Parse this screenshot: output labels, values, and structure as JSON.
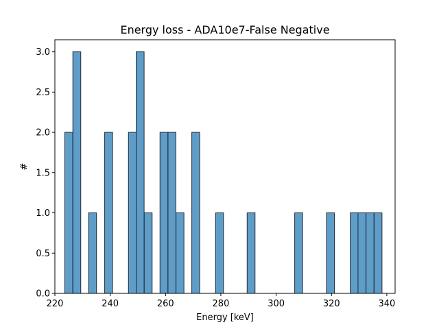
{
  "chart_data": {
    "type": "bar",
    "title": "Energy loss - ADA10e7-False Negative",
    "xlabel": "Energy [keV]",
    "ylabel": "#",
    "xlim": [
      220,
      343
    ],
    "ylim": [
      0,
      3.15
    ],
    "x_ticks": [
      "220",
      "240",
      "260",
      "280",
      "300",
      "320",
      "340"
    ],
    "x_tick_values": [
      220,
      240,
      260,
      280,
      300,
      320,
      340
    ],
    "y_ticks": [
      "0.0",
      "0.5",
      "1.0",
      "1.5",
      "2.0",
      "2.5",
      "3.0"
    ],
    "y_tick_values": [
      0,
      0.5,
      1,
      1.5,
      2,
      2.5,
      3
    ],
    "bin_width": 2.86,
    "bins": [
      {
        "x0": 223.6,
        "count": 2
      },
      {
        "x0": 226.5,
        "count": 3
      },
      {
        "x0": 232.2,
        "count": 1
      },
      {
        "x0": 238.0,
        "count": 2
      },
      {
        "x0": 246.6,
        "count": 2
      },
      {
        "x0": 249.4,
        "count": 3
      },
      {
        "x0": 252.3,
        "count": 1
      },
      {
        "x0": 258.0,
        "count": 2
      },
      {
        "x0": 260.9,
        "count": 2
      },
      {
        "x0": 263.8,
        "count": 1
      },
      {
        "x0": 269.5,
        "count": 2
      },
      {
        "x0": 278.1,
        "count": 1
      },
      {
        "x0": 289.5,
        "count": 1
      },
      {
        "x0": 306.7,
        "count": 1
      },
      {
        "x0": 318.2,
        "count": 1
      },
      {
        "x0": 326.8,
        "count": 1
      },
      {
        "x0": 329.6,
        "count": 1
      },
      {
        "x0": 332.5,
        "count": 1
      },
      {
        "x0": 335.4,
        "count": 1
      }
    ],
    "grid": false,
    "legend": "none",
    "colors": {
      "bar_fill": "#5f9dc9",
      "bar_edge": "#1f2a36",
      "axis": "#000000"
    }
  }
}
